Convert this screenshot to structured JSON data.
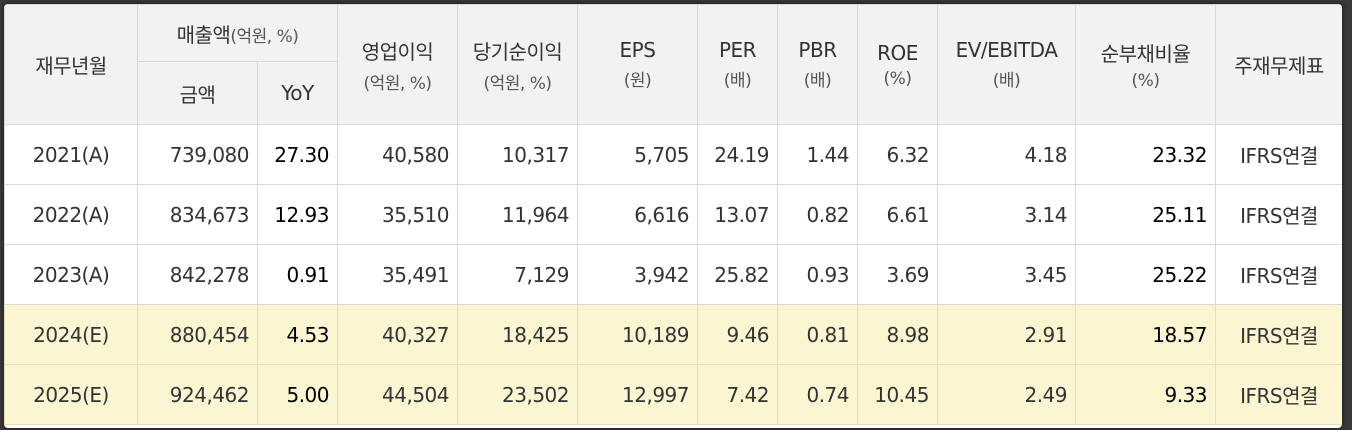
{
  "header": {
    "year": "재무년월",
    "sales": "매출액",
    "sales_unit": "(억원, %)",
    "amount": "금액",
    "yoy": "YoY",
    "op_profit": "영업이익",
    "op_profit_unit": "(억원, %)",
    "net_profit": "당기순이익",
    "net_profit_unit": "(억원, %)",
    "eps": "EPS",
    "eps_unit": "(원)",
    "per": "PER",
    "per_unit": "(배)",
    "pbr": "PBR",
    "pbr_unit": "(배)",
    "roe": "ROE",
    "roe_unit": "(%)",
    "ev_ebitda": "EV/EBITDA",
    "ev_ebitda_unit": "(배)",
    "net_debt": "순부채비율",
    "net_debt_unit": "(%)",
    "statement": "주재무제표"
  },
  "rows": [
    {
      "year": "2021(A)",
      "sales": "739,080",
      "yoy": "27.30",
      "op": "40,580",
      "net": "10,317",
      "eps": "5,705",
      "per": "24.19",
      "pbr": "1.44",
      "roe": "6.32",
      "ev": "4.18",
      "debt": "23.32",
      "std": "IFRS연결"
    },
    {
      "year": "2022(A)",
      "sales": "834,673",
      "yoy": "12.93",
      "op": "35,510",
      "net": "11,964",
      "eps": "6,616",
      "per": "13.07",
      "pbr": "0.82",
      "roe": "6.61",
      "ev": "3.14",
      "debt": "25.11",
      "std": "IFRS연결"
    },
    {
      "year": "2023(A)",
      "sales": "842,278",
      "yoy": "0.91",
      "op": "35,491",
      "net": "7,129",
      "eps": "3,942",
      "per": "25.82",
      "pbr": "0.93",
      "roe": "3.69",
      "ev": "3.45",
      "debt": "25.22",
      "std": "IFRS연결"
    },
    {
      "year": "2024(E)",
      "sales": "880,454",
      "yoy": "4.53",
      "op": "40,327",
      "net": "18,425",
      "eps": "10,189",
      "per": "9.46",
      "pbr": "0.81",
      "roe": "8.98",
      "ev": "2.91",
      "debt": "18.57",
      "std": "IFRS연결"
    },
    {
      "year": "2025(E)",
      "sales": "924,462",
      "yoy": "5.00",
      "op": "44,504",
      "net": "23,502",
      "eps": "12,997",
      "per": "7.42",
      "pbr": "0.74",
      "roe": "10.45",
      "ev": "2.49",
      "debt": "9.33",
      "std": "IFRS연결"
    }
  ],
  "colors": {
    "header_bg": "#f2f2f2",
    "estimate_row_bg": "#fbf5d2",
    "border": "#d8d8d8"
  }
}
